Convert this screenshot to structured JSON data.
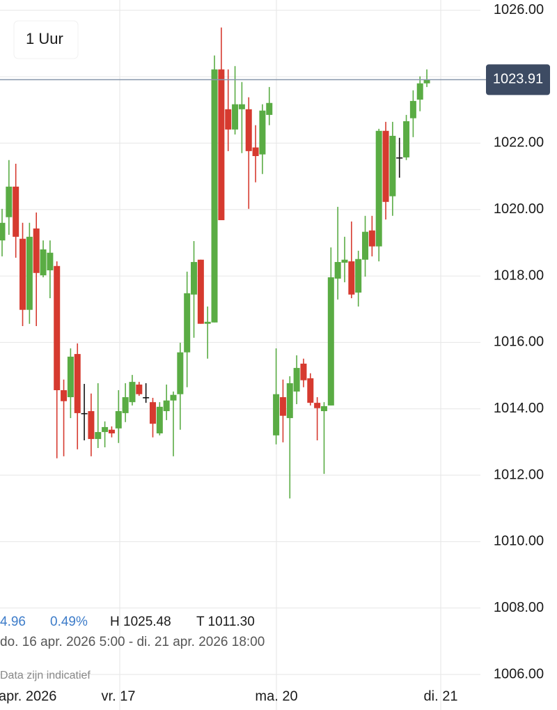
{
  "header": {
    "interval": "1 Uur"
  },
  "chart_data": {
    "type": "candlestick",
    "open": [
      1019.07,
      1019.77,
      1020.69,
      1019.12,
      1016.98,
      1019.43,
      1018.02,
      1018.17,
      1018.3,
      1014.56,
      1014.35,
      1015.65,
      1013.87,
      1013.93,
      1013.09,
      1013.3,
      1013.37,
      1013.41,
      1013.87,
      1014.2,
      1014.73,
      1014.35,
      1014.2,
      1013.26,
      1013.93,
      1014.25,
      1014.44,
      1015.7,
      1017.44,
      1018.49,
      1016.56,
      1016.6,
      1024.22,
      1023.02,
      1022.41,
      1023.02,
      1023.02,
      1021.87,
      1021.66,
      1022.85,
      1013.2,
      1014.35,
      1013.72,
      1014.52,
      1015.36,
      1014.92,
      1014.18,
      1013.93,
      1014.1,
      1017.92,
      1018.4,
      1018.44,
      1017.5,
      1018.49,
      1019.37,
      1018.89,
      1022.37,
      1020.4,
      1021.57,
      1021.57,
      1022.75,
      1023.31,
      1023.8
    ],
    "high": [
      1020.02,
      1021.49,
      1021.38,
      1019.6,
      1019.6,
      1019.91,
      1019.07,
      1019.07,
      1018.44,
      1014.88,
      1015.82,
      1015.97,
      1014.75,
      1014.46,
      1014.77,
      1013.62,
      1013.47,
      1014.56,
      1014.77,
      1015.02,
      1014.81,
      1014.77,
      1014.33,
      1014.2,
      1014.73,
      1014.52,
      1015.99,
      1018.13,
      1019.05,
      1018.49,
      1017.08,
      1024.64,
      1025.48,
      1024.22,
      1024.32,
      1023.84,
      1023.38,
      1022.54,
      1023.17,
      1023.69,
      1015.82,
      1014.88,
      1014.98,
      1015.61,
      1015.51,
      1015.07,
      1014.35,
      1014.2,
      1018.86,
      1020.08,
      1019.18,
      1019.64,
      1018.76,
      1019.81,
      1019.81,
      1022.43,
      1022.64,
      1022.64,
      1022.16,
      1022.85,
      1023.59,
      1024.01,
      1024.22
    ],
    "low": [
      1018.59,
      1019.24,
      1018.55,
      1016.49,
      1016.56,
      1016.49,
      1017.96,
      1017.33,
      1012.51,
      1012.57,
      1013.72,
      1012.78,
      1013.05,
      1012.57,
      1012.82,
      1012.84,
      1013.14,
      1012.97,
      1013.6,
      1014.1,
      1014.39,
      1014.18,
      1013.14,
      1013.2,
      1013.66,
      1012.57,
      1013.37,
      1014.65,
      1016.14,
      1016.56,
      1015.51,
      1016.6,
      1019.68,
      1021.76,
      1022.26,
      1021.7,
      1020.02,
      1020.82,
      1021.07,
      1022.54,
      1012.93,
      1012.99,
      1011.3,
      1014.14,
      1014.65,
      1014.1,
      1013.05,
      1012.04,
      1014.1,
      1017.29,
      1017.81,
      1017.33,
      1017.08,
      1017.98,
      1018.59,
      1018.44,
      1019.7,
      1019.81,
      1020.96,
      1021.49,
      1022.18,
      1022.96,
      1023.69
    ],
    "close": [
      1019.6,
      1020.69,
      1019.18,
      1016.98,
      1019.18,
      1018.09,
      1018.8,
      1018.7,
      1014.56,
      1014.23,
      1015.57,
      1013.87,
      1013.87,
      1013.09,
      1013.3,
      1013.45,
      1013.26,
      1013.93,
      1014.35,
      1014.81,
      1014.44,
      1014.35,
      1013.55,
      1014.06,
      1014.25,
      1014.42,
      1015.7,
      1017.48,
      1018.42,
      1016.56,
      1016.62,
      1024.22,
      1019.68,
      1022.41,
      1023.17,
      1023.17,
      1021.76,
      1021.61,
      1022.98,
      1023.21,
      1014.44,
      1013.79,
      1014.77,
      1015.23,
      1014.86,
      1014.18,
      1014.02,
      1014.08,
      1017.96,
      1018.42,
      1018.49,
      1017.44,
      1018.51,
      1019.33,
      1018.89,
      1022.37,
      1020.23,
      1022.22,
      1021.57,
      1022.66,
      1023.27,
      1023.8,
      1023.91
    ],
    "up_color": "#5aac44",
    "down_color": "#d63a2f",
    "flat_color": "#111111",
    "ylim": [
      1004.93,
      1026.31
    ],
    "yticks": [
      {
        "value": 1006,
        "label": "1006.00"
      },
      {
        "value": 1008,
        "label": "1008.00"
      },
      {
        "value": 1010,
        "label": "1010.00"
      },
      {
        "value": 1012,
        "label": "1012.00"
      },
      {
        "value": 1014,
        "label": "1014.00"
      },
      {
        "value": 1016,
        "label": "1016.00"
      },
      {
        "value": 1018,
        "label": "1018.00"
      },
      {
        "value": 1020,
        "label": "1020.00"
      },
      {
        "value": 1022,
        "label": "1022.00"
      },
      {
        "value": 1024,
        "label": "1024.00"
      },
      {
        "value": 1026,
        "label": "1026.00"
      }
    ],
    "grid": true,
    "last_price": {
      "value": 1023.91,
      "label": "1023.91"
    },
    "x_axis_labels": [
      "apr. 2026",
      "vr. 17",
      "ma. 20",
      "di. 21"
    ]
  },
  "stats": {
    "change": "4.96",
    "change_pct": "0.49%",
    "high": "H 1025.48",
    "low": "T 1011.30",
    "range": "do. 16 apr. 2026 5:00 - di. 21 apr. 2026 18:00",
    "disclaimer": "Data zijn indicatief"
  }
}
